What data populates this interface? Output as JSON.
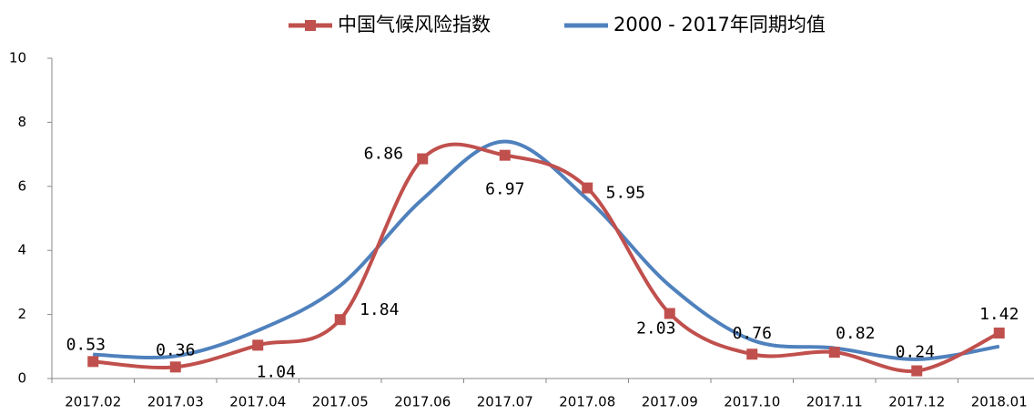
{
  "chart_data": {
    "type": "line",
    "categories": [
      "2017.02",
      "2017.03",
      "2017.04",
      "2017.05",
      "2017.06",
      "2017.07",
      "2017.08",
      "2017.09",
      "2017.10",
      "2017.11",
      "2017.12",
      "2018.01"
    ],
    "series": [
      {
        "name": "中国气候风险指数",
        "color": "#c0504d",
        "values": [
          0.53,
          0.36,
          1.04,
          1.84,
          6.86,
          6.97,
          5.95,
          2.03,
          0.76,
          0.82,
          0.24,
          1.42
        ],
        "markers": true,
        "data_labels": true
      },
      {
        "name": "2000 - 2017年同期均值",
        "color": "#4f81bd",
        "values": [
          0.75,
          0.7,
          1.5,
          2.9,
          5.6,
          7.4,
          5.6,
          2.9,
          1.2,
          0.95,
          0.6,
          1.0
        ],
        "markers": false,
        "data_labels": false
      }
    ],
    "ylim": [
      0,
      10
    ],
    "yticks": [
      0,
      2,
      4,
      6,
      8,
      10
    ],
    "grid": false,
    "smooth": true,
    "legend": "top"
  }
}
